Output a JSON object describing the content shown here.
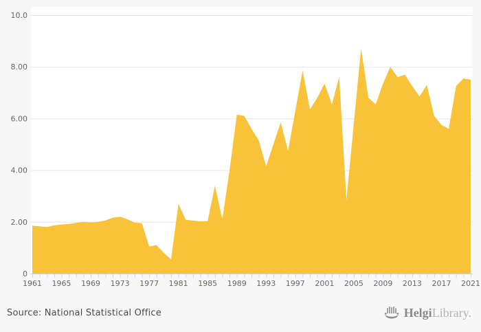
{
  "chart_data": {
    "type": "area",
    "title": "",
    "xlabel": "",
    "ylabel": "",
    "ylim": [
      0,
      10
    ],
    "grid": "horizontal",
    "legend": "none",
    "fill_color": "#f8c239",
    "years": [
      1961,
      1962,
      1963,
      1964,
      1965,
      1966,
      1967,
      1968,
      1969,
      1970,
      1971,
      1972,
      1973,
      1974,
      1975,
      1976,
      1977,
      1978,
      1979,
      1980,
      1981,
      1982,
      1983,
      1984,
      1985,
      1986,
      1987,
      1988,
      1989,
      1990,
      1991,
      1992,
      1993,
      1994,
      1995,
      1996,
      1997,
      1998,
      1999,
      2000,
      2001,
      2002,
      2003,
      2004,
      2005,
      2006,
      2007,
      2008,
      2009,
      2010,
      2011,
      2012,
      2013,
      2014,
      2015,
      2016,
      2017,
      2018,
      2019,
      2020,
      2021
    ],
    "values": [
      1.85,
      1.83,
      1.8,
      1.87,
      1.9,
      1.92,
      1.96,
      2.0,
      1.98,
      2.0,
      2.05,
      2.16,
      2.2,
      2.1,
      1.97,
      1.95,
      1.05,
      1.1,
      0.8,
      0.55,
      2.7,
      2.08,
      2.05,
      2.02,
      2.03,
      3.4,
      2.1,
      4.0,
      6.15,
      6.1,
      5.6,
      5.15,
      4.15,
      5.0,
      5.85,
      4.75,
      6.3,
      7.85,
      6.35,
      6.8,
      7.35,
      6.55,
      7.6,
      2.85,
      5.8,
      8.72,
      6.8,
      6.55,
      7.35,
      8.0,
      7.6,
      7.7,
      7.25,
      6.85,
      7.3,
      6.1,
      5.75,
      5.6,
      7.25,
      7.55,
      7.5
    ],
    "y_tick_values": [
      0,
      2,
      4,
      6,
      8,
      10
    ],
    "y_tick_labels": [
      "0",
      "2.00",
      "4.00",
      "6.00",
      "8.00",
      "10.0"
    ],
    "x_tick_label_years": [
      1961,
      1965,
      1969,
      1973,
      1977,
      1981,
      1985,
      1989,
      1993,
      1997,
      2001,
      2005,
      2009,
      2013,
      2017,
      2021
    ]
  },
  "colors": {
    "page_background": "#f7f7f8",
    "plot_background": "#ffffff",
    "grid_color": "#e6e6e6",
    "axis_tick_color": "#ccd6eb",
    "label_color": "#666666",
    "area_fill": "#f8c239"
  },
  "footer": {
    "source": "Source: National Statistical Office",
    "logo_bold": "Helgi",
    "logo_light": "Library."
  }
}
